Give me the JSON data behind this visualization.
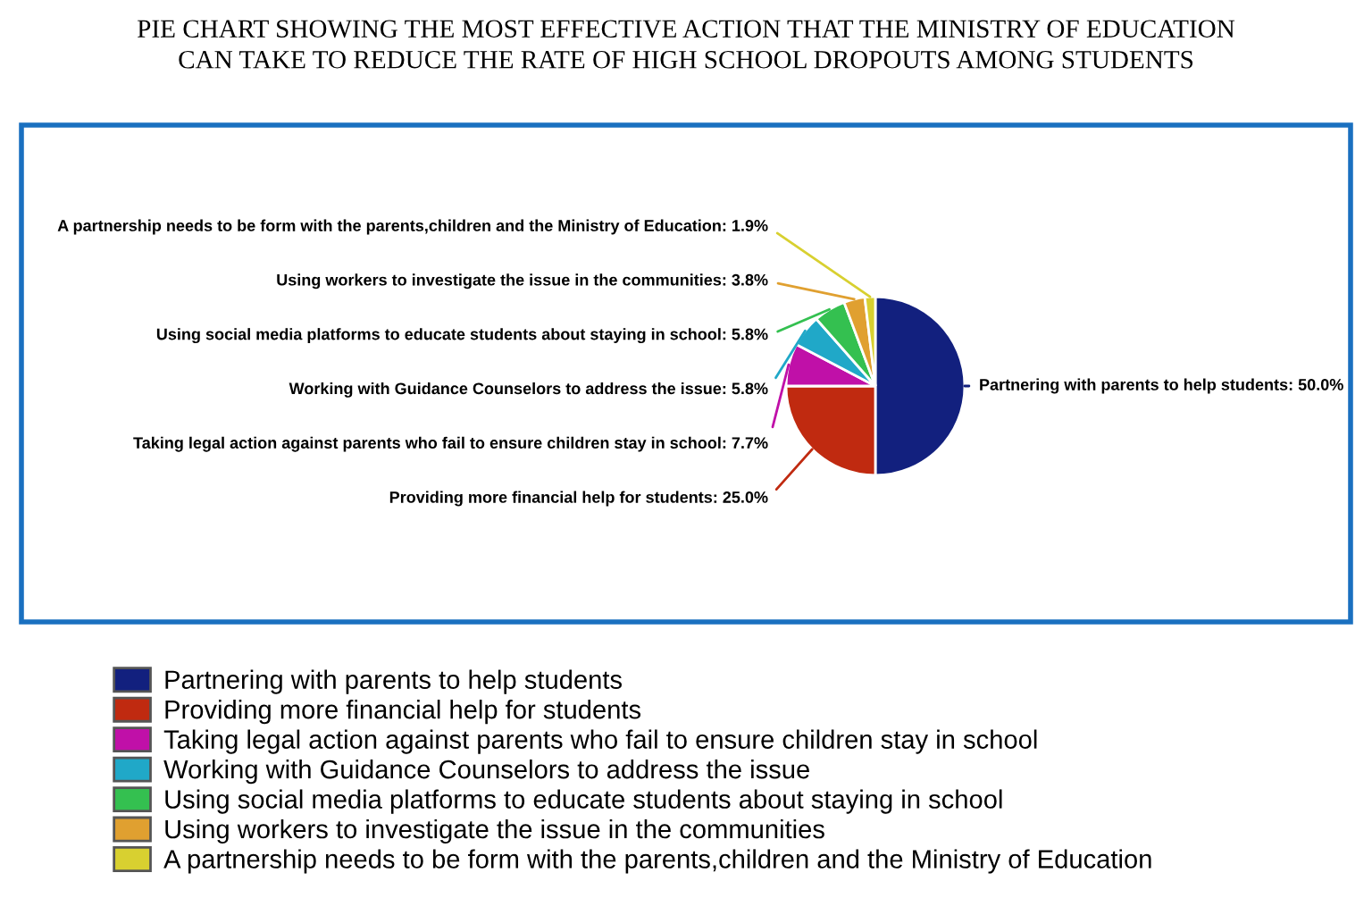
{
  "chart_data": {
    "type": "pie",
    "title": "PIE CHART SHOWING THE MOST EFFECTIVE ACTION THAT THE MINISTRY OF EDUCATION\nCAN TAKE TO REDUCE THE RATE OF HIGH SCHOOL DROPOUTS AMONG STUDENTS",
    "categories": [
      "Partnering with parents to help students",
      "Providing more financial help for students",
      "Taking legal action against parents who fail to ensure children stay in school",
      "Working with Guidance Counselors to address the issue",
      "Using social media platforms to educate students about staying in school",
      "Using workers to investigate the issue in the communities",
      "A partnership needs to be form with the parents,children and the Ministry of Education"
    ],
    "values": [
      50.0,
      25.0,
      7.7,
      5.8,
      5.8,
      3.8,
      1.9
    ],
    "colors": [
      "#12207e",
      "#c02a10",
      "#c010a8",
      "#20a8c8",
      "#34c050",
      "#e0a030",
      "#d8d030"
    ],
    "value_labels": [
      "Partnering with parents to help students: 50.0%",
      "Providing more financial help for students: 25.0%",
      "Taking legal action against parents who fail to ensure children stay in school: 7.7%",
      "Working with Guidance Counselors to address the issue: 5.8%",
      "Using social media platforms to educate students about staying in school: 5.8%",
      "Using workers to investigate the issue in the communities: 3.8%",
      "A partnership needs to be form with the parents,children and the Ministry of Education: 1.9%"
    ],
    "legend": "bottom"
  }
}
